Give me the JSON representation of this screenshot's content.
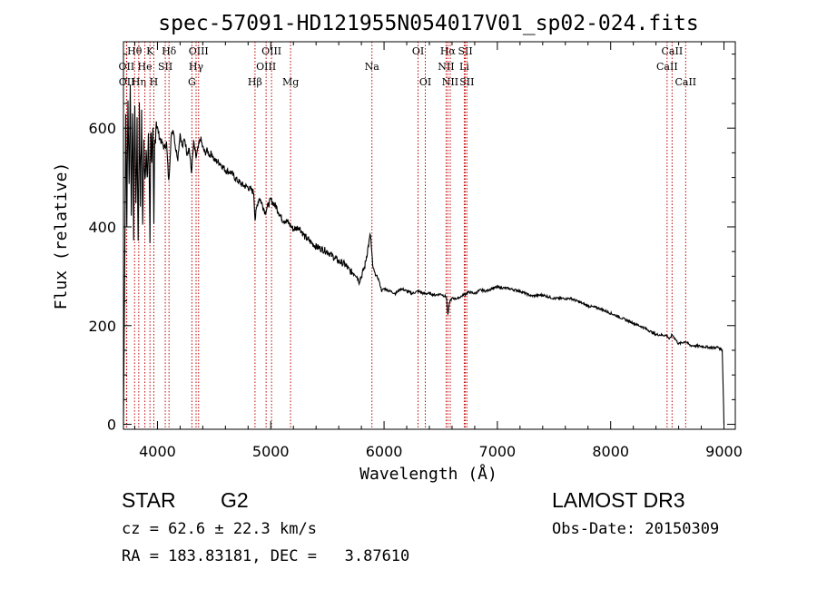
{
  "chart_data": {
    "type": "line",
    "title": "spec-57091-HD121955N054017V01_sp02-024.fits",
    "xlabel": "Wavelength (Å)",
    "ylabel": "Flux (relative)",
    "xlim": [
      3700,
      9100
    ],
    "ylim": [
      -10,
      775
    ],
    "x_ticks": [
      4000,
      5000,
      6000,
      7000,
      8000,
      9000
    ],
    "x_tick_labels": [
      "4000",
      "5000",
      "6000",
      "7000",
      "8000",
      "9000"
    ],
    "y_ticks": [
      0,
      200,
      400,
      600
    ],
    "y_tick_labels": [
      "0",
      "200",
      "400",
      "600"
    ],
    "series": [
      {
        "name": "flux",
        "x": [
          3700,
          3710,
          3720,
          3730,
          3740,
          3750,
          3760,
          3770,
          3780,
          3790,
          3800,
          3810,
          3820,
          3830,
          3840,
          3850,
          3860,
          3870,
          3880,
          3890,
          3900,
          3910,
          3920,
          3930,
          3934,
          3940,
          3950,
          3960,
          3968,
          3975,
          3990,
          4000,
          4020,
          4040,
          4060,
          4080,
          4100,
          4120,
          4140,
          4160,
          4180,
          4200,
          4220,
          4240,
          4260,
          4280,
          4300,
          4320,
          4340,
          4360,
          4380,
          4400,
          4420,
          4440,
          4460,
          4480,
          4500,
          4550,
          4600,
          4650,
          4700,
          4750,
          4800,
          4850,
          4862,
          4880,
          4900,
          4950,
          5000,
          5050,
          5100,
          5150,
          5200,
          5250,
          5300,
          5350,
          5400,
          5450,
          5500,
          5550,
          5600,
          5650,
          5700,
          5750,
          5780,
          5800,
          5830,
          5860,
          5880,
          5892,
          5900,
          5920,
          5950,
          5980,
          6000,
          6050,
          6100,
          6150,
          6200,
          6250,
          6300,
          6350,
          6400,
          6450,
          6500,
          6550,
          6563,
          6580,
          6600,
          6650,
          6700,
          6750,
          6800,
          6850,
          6900,
          6950,
          7000,
          7100,
          7200,
          7300,
          7400,
          7500,
          7600,
          7650,
          7700,
          7800,
          7900,
          8000,
          8100,
          8200,
          8300,
          8400,
          8498,
          8520,
          8542,
          8600,
          8662,
          8700,
          8800,
          8900,
          8950,
          8985,
          9000
        ],
        "y": [
          0,
          280,
          640,
          420,
          660,
          480,
          700,
          420,
          650,
          390,
          660,
          440,
          600,
          370,
          640,
          460,
          620,
          400,
          570,
          500,
          560,
          480,
          590,
          460,
          370,
          600,
          540,
          580,
          390,
          560,
          620,
          600,
          580,
          570,
          560,
          570,
          490,
          580,
          600,
          560,
          540,
          590,
          560,
          580,
          550,
          560,
          510,
          570,
          540,
          560,
          580,
          560,
          550,
          555,
          545,
          550,
          535,
          530,
          515,
          510,
          495,
          485,
          480,
          470,
          415,
          445,
          460,
          430,
          455,
          440,
          415,
          410,
          395,
          400,
          380,
          370,
          360,
          355,
          350,
          340,
          330,
          325,
          310,
          305,
          290,
          300,
          320,
          360,
          385,
          345,
          320,
          305,
          295,
          270,
          275,
          270,
          265,
          275,
          270,
          265,
          270,
          265,
          265,
          262,
          264,
          258,
          220,
          250,
          255,
          255,
          262,
          268,
          265,
          272,
          270,
          275,
          278,
          275,
          270,
          260,
          262,
          255,
          255,
          255,
          250,
          240,
          235,
          225,
          215,
          205,
          195,
          182,
          180,
          172,
          182,
          163,
          168,
          160,
          158,
          155,
          156,
          150,
          0
        ]
      }
    ],
    "lines": [
      {
        "label": "Hθ",
        "x": 3798,
        "row": 0
      },
      {
        "label": "OII",
        "x": 3727,
        "row": 1
      },
      {
        "label": "OII",
        "x": 3729,
        "row": 2
      },
      {
        "label": "Hη",
        "x": 3835,
        "row": 2
      },
      {
        "label": "He",
        "x": 3889,
        "row": 1
      },
      {
        "label": "K",
        "x": 3934,
        "row": 0
      },
      {
        "label": "H",
        "x": 3968,
        "row": 2
      },
      {
        "label": "SII",
        "x": 4069,
        "row": 1
      },
      {
        "label": "Hδ",
        "x": 4102,
        "row": 0
      },
      {
        "label": "OIII",
        "x": 4363,
        "row": 0
      },
      {
        "label": "Hγ",
        "x": 4341,
        "row": 1
      },
      {
        "label": "G",
        "x": 4304,
        "row": 2
      },
      {
        "label": "Hβ",
        "x": 4861,
        "row": 2
      },
      {
        "label": "OIII",
        "x": 5007,
        "row": 0
      },
      {
        "label": "OIII",
        "x": 4959,
        "row": 1
      },
      {
        "label": "Mg",
        "x": 5175,
        "row": 2
      },
      {
        "label": "Na",
        "x": 5893,
        "row": 1
      },
      {
        "label": "OI",
        "x": 6300,
        "row": 0
      },
      {
        "label": "OI",
        "x": 6364,
        "row": 2
      },
      {
        "label": "Hα",
        "x": 6563,
        "row": 0
      },
      {
        "label": "NII",
        "x": 6548,
        "row": 1
      },
      {
        "label": "NII",
        "x": 6584,
        "row": 2
      },
      {
        "label": "SII",
        "x": 6717,
        "row": 0
      },
      {
        "label": "Li",
        "x": 6708,
        "row": 1
      },
      {
        "label": "SII",
        "x": 6731,
        "row": 2
      },
      {
        "label": "CaII",
        "x": 8542,
        "row": 0
      },
      {
        "label": "CaII",
        "x": 8498,
        "row": 1
      },
      {
        "label": "CaII",
        "x": 8662,
        "row": 2
      }
    ]
  },
  "info": {
    "class": "STAR",
    "subclass": "G2",
    "survey": "LAMOST DR3",
    "redshift": "cz = 62.6 ± 22.3 km/s",
    "obs_date": "Obs-Date: 20150309",
    "coords": "RA = 183.83181, DEC =   3.87610"
  }
}
